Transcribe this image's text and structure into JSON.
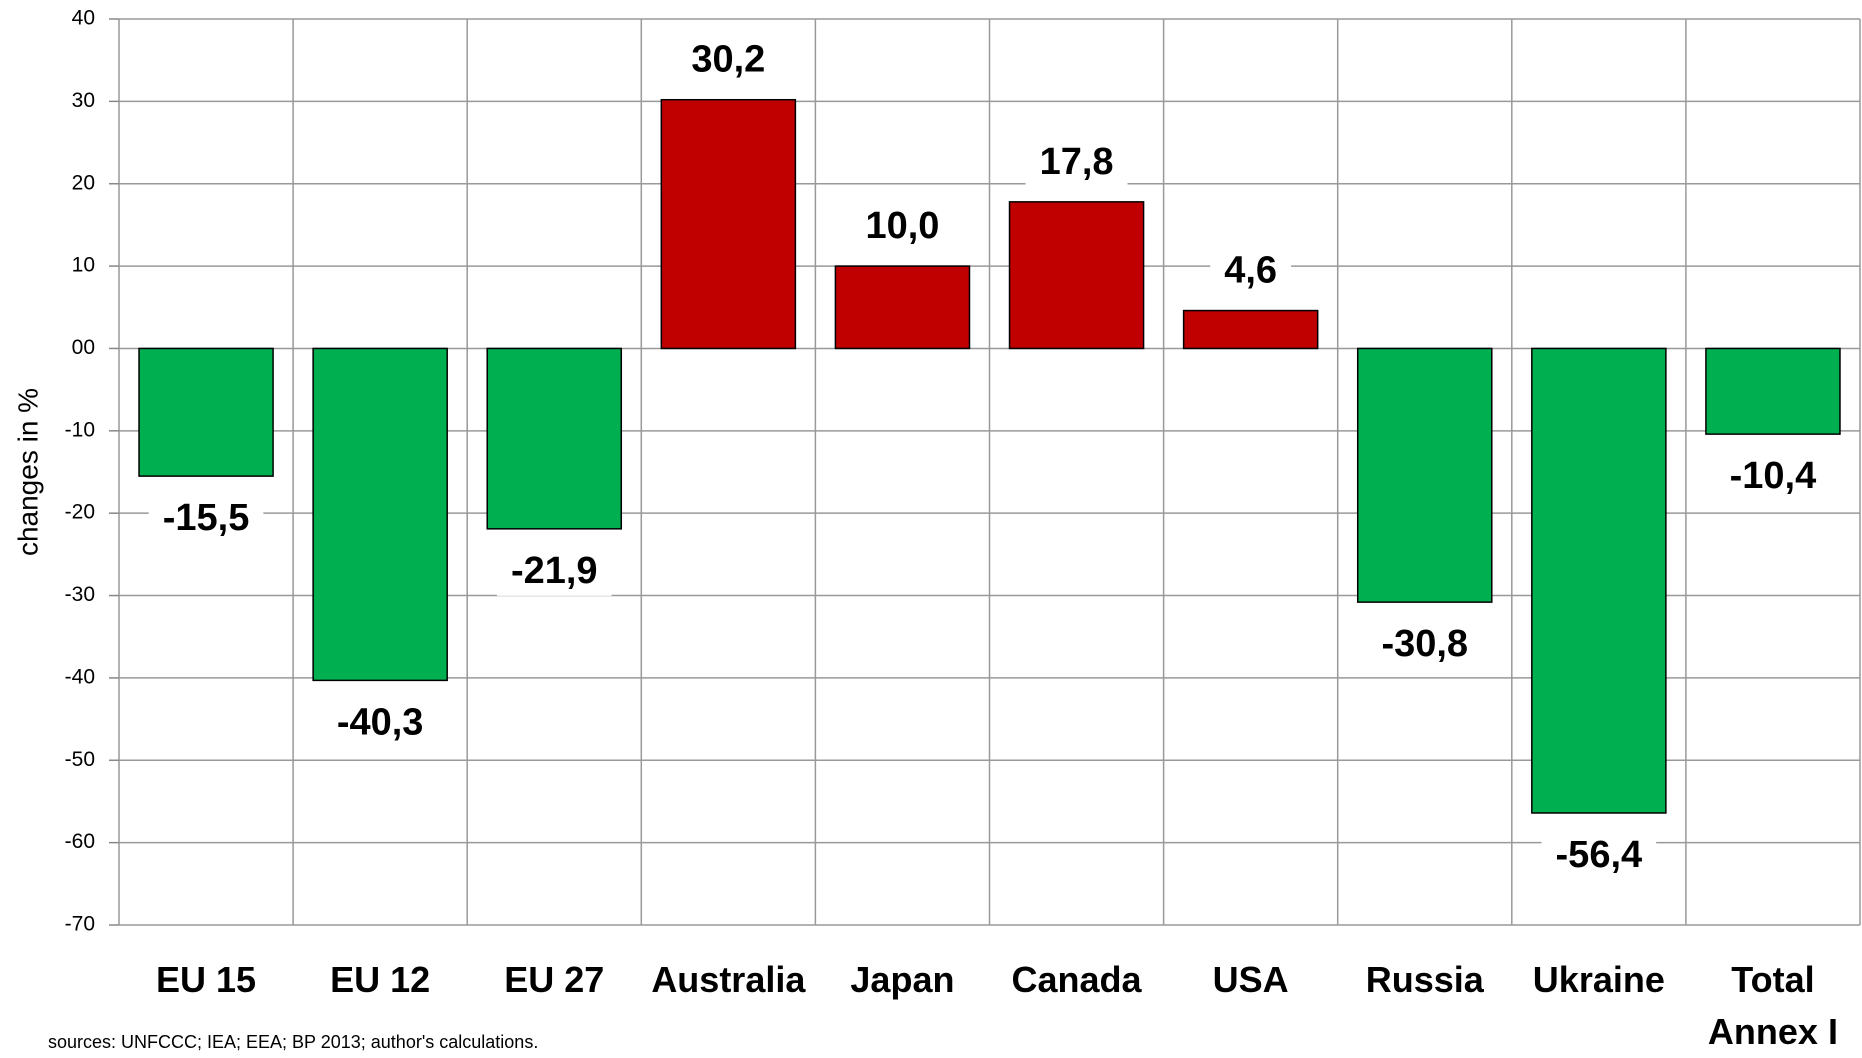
{
  "chart_data": {
    "type": "bar",
    "y_label": "changes in %",
    "source": "sources: UNFCCC; IEA; EEA;  BP 2013; author's calculations.",
    "categories": [
      "EU 15",
      "EU 12",
      "EU 27",
      "Australia",
      "Japan",
      "Canada",
      "USA",
      "Russia",
      "Ukraine",
      "Total Annex I"
    ],
    "values": [
      -15.5,
      -40.3,
      -21.9,
      30.2,
      10.0,
      17.8,
      4.6,
      -30.8,
      -56.4,
      -10.4
    ],
    "value_labels": [
      "-15,5",
      "-40,3",
      "-21,9",
      "30,2",
      "10,0",
      "17,8",
      "4,6",
      "-30,8",
      "-56,4",
      "-10,4"
    ],
    "colors": [
      "#00b050",
      "#00b050",
      "#00b050",
      "#c00000",
      "#c00000",
      "#c00000",
      "#c00000",
      "#00b050",
      "#00b050",
      "#00b050"
    ],
    "ylim": [
      -70,
      40
    ],
    "yticks": [
      40,
      30,
      20,
      10,
      {
        "value": 0,
        "label": "00"
      },
      -10,
      -20,
      -30,
      -40,
      -50,
      -60,
      -70
    ],
    "grid": true
  }
}
